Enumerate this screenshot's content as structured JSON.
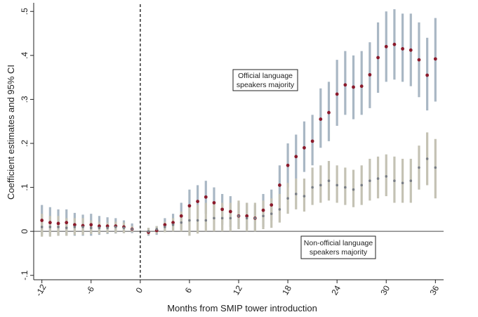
{
  "chart_data": {
    "type": "scatter",
    "title": "",
    "xlabel": "Months from SMIP tower introduction",
    "ylabel": "Coefficient estimates and 95% CI",
    "xlim": [
      -13,
      37
    ],
    "ylim": [
      -0.11,
      0.51
    ],
    "x_ticks": [
      -12,
      -6,
      0,
      6,
      12,
      18,
      24,
      30,
      36
    ],
    "x_tick_labels": [
      "-12",
      "-6",
      "0",
      "6",
      "12",
      "18",
      "24",
      "30",
      "36"
    ],
    "y_ticks": [
      -0.1,
      0,
      0.1,
      0.2,
      0.3,
      0.4,
      0.5
    ],
    "y_tick_labels": [
      "-.1",
      "0",
      ".1",
      ".2",
      ".3",
      ".4",
      ".5"
    ],
    "reference_lines": {
      "vertical_x": 0,
      "horizontal_y": 0
    },
    "annotations": [
      {
        "lines": [
          "Official language",
          "speakers majority"
        ],
        "series": "Official language speakers majority"
      },
      {
        "lines": [
          "Non-official language",
          "speakers majority"
        ],
        "series": "Non-official language speakers majority"
      }
    ],
    "series": [
      {
        "name": "Official language speakers majority",
        "marker_color": "#8b1a2b",
        "ci_color": "#a9b7c4",
        "x": [
          -12,
          -11,
          -10,
          -9,
          -8,
          -7,
          -6,
          -5,
          -4,
          -3,
          -2,
          -1,
          1,
          2,
          3,
          4,
          5,
          6,
          7,
          8,
          9,
          10,
          11,
          12,
          13,
          14,
          15,
          16,
          17,
          18,
          19,
          20,
          21,
          22,
          23,
          24,
          25,
          26,
          27,
          28,
          29,
          30,
          31,
          32,
          33,
          34,
          35,
          36
        ],
        "y": [
          0.025,
          0.02,
          0.018,
          0.02,
          0.015,
          0.013,
          0.015,
          0.012,
          0.012,
          0.012,
          0.01,
          0.005,
          -0.002,
          0.002,
          0.015,
          0.02,
          0.035,
          0.058,
          0.068,
          0.078,
          0.065,
          0.05,
          0.045,
          0.035,
          0.035,
          0.03,
          0.048,
          0.06,
          0.105,
          0.15,
          0.17,
          0.19,
          0.205,
          0.255,
          0.27,
          0.312,
          0.333,
          0.328,
          0.33,
          0.356,
          0.395,
          0.42,
          0.425,
          0.415,
          0.412,
          0.39,
          0.355,
          0.392
        ],
        "ci_low": [
          -0.008,
          -0.01,
          -0.01,
          -0.01,
          -0.01,
          -0.01,
          -0.01,
          -0.008,
          -0.006,
          -0.005,
          -0.004,
          -0.004,
          -0.01,
          -0.008,
          0.0,
          0.0,
          0.005,
          0.02,
          0.03,
          0.04,
          0.03,
          0.015,
          0.01,
          0.005,
          0.005,
          0.0,
          0.01,
          0.025,
          0.06,
          0.1,
          0.12,
          0.135,
          0.15,
          0.19,
          0.205,
          0.24,
          0.265,
          0.255,
          0.265,
          0.28,
          0.315,
          0.34,
          0.345,
          0.34,
          0.33,
          0.305,
          0.275,
          0.295
        ],
        "ci_high": [
          0.06,
          0.055,
          0.05,
          0.05,
          0.042,
          0.038,
          0.04,
          0.035,
          0.032,
          0.03,
          0.025,
          0.018,
          0.008,
          0.012,
          0.03,
          0.04,
          0.065,
          0.095,
          0.105,
          0.115,
          0.1,
          0.085,
          0.08,
          0.065,
          0.065,
          0.06,
          0.085,
          0.095,
          0.15,
          0.2,
          0.22,
          0.25,
          0.265,
          0.325,
          0.34,
          0.39,
          0.41,
          0.4,
          0.41,
          0.43,
          0.475,
          0.5,
          0.505,
          0.495,
          0.495,
          0.475,
          0.44,
          0.485
        ]
      },
      {
        "name": "Non-official language speakers majority",
        "marker_color": "#7a7f86",
        "ci_color": "#c4c2b4",
        "x": [
          -12,
          -11,
          -10,
          -9,
          -8,
          -7,
          -6,
          -5,
          -4,
          -3,
          -2,
          -1,
          1,
          2,
          3,
          4,
          5,
          6,
          7,
          8,
          9,
          10,
          11,
          12,
          13,
          14,
          15,
          16,
          17,
          18,
          19,
          20,
          21,
          22,
          23,
          24,
          25,
          26,
          27,
          28,
          29,
          30,
          31,
          32,
          33,
          34,
          35,
          36
        ],
        "y": [
          0.01,
          0.01,
          0.01,
          0.008,
          0.01,
          0.01,
          0.008,
          0.008,
          0.008,
          0.01,
          0.008,
          0.005,
          0.0,
          0.005,
          0.01,
          0.015,
          0.02,
          0.025,
          0.025,
          0.025,
          0.03,
          0.03,
          0.03,
          0.035,
          0.03,
          0.03,
          0.035,
          0.04,
          0.05,
          0.075,
          0.085,
          0.08,
          0.1,
          0.105,
          0.115,
          0.105,
          0.1,
          0.095,
          0.105,
          0.115,
          0.12,
          0.125,
          0.115,
          0.11,
          0.115,
          0.145,
          0.165,
          0.145
        ],
        "ci_low": [
          -0.012,
          -0.012,
          -0.01,
          -0.01,
          -0.008,
          -0.008,
          -0.006,
          -0.006,
          -0.004,
          -0.004,
          -0.004,
          -0.002,
          -0.008,
          -0.005,
          -0.002,
          0.0,
          0.0,
          -0.01,
          -0.005,
          0.0,
          0.0,
          0.0,
          0.0,
          0.005,
          0.0,
          0.0,
          0.005,
          0.008,
          0.02,
          0.04,
          0.05,
          0.045,
          0.06,
          0.065,
          0.07,
          0.065,
          0.06,
          0.055,
          0.06,
          0.07,
          0.075,
          0.08,
          0.065,
          0.065,
          0.065,
          0.095,
          0.105,
          0.075
        ],
        "ci_high": [
          0.04,
          0.035,
          0.035,
          0.03,
          0.03,
          0.03,
          0.025,
          0.022,
          0.02,
          0.022,
          0.02,
          0.012,
          0.008,
          0.012,
          0.022,
          0.03,
          0.045,
          0.06,
          0.06,
          0.065,
          0.065,
          0.065,
          0.065,
          0.07,
          0.065,
          0.065,
          0.07,
          0.075,
          0.085,
          0.11,
          0.12,
          0.12,
          0.145,
          0.15,
          0.16,
          0.15,
          0.145,
          0.14,
          0.15,
          0.165,
          0.17,
          0.175,
          0.17,
          0.165,
          0.165,
          0.195,
          0.225,
          0.21
        ]
      }
    ]
  }
}
